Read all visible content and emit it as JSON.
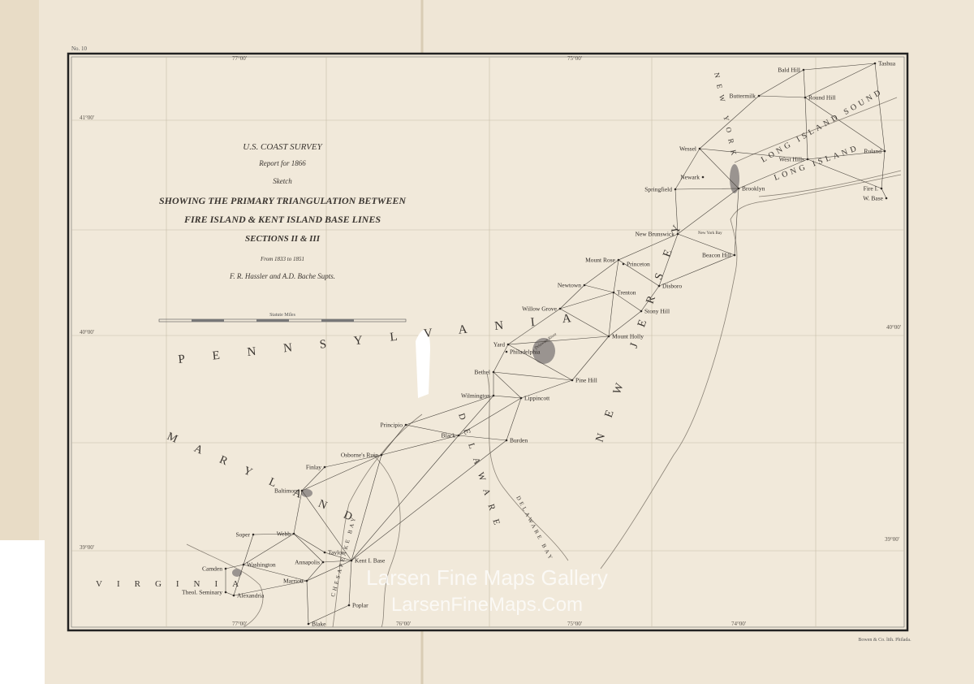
{
  "sheet_number": "No. 10",
  "title_block": {
    "lines": [
      "U.S. COAST SURVEY",
      "Report for 1866",
      "Sketch",
      "SHOWING THE PRIMARY TRIANGULATION BETWEEN",
      "FIRE ISLAND & KENT ISLAND BASE LINES",
      "SECTIONS II & III",
      "From 1833 to 1851",
      "F. R. Hassler and A.D. Bache Supts."
    ],
    "scale_caption": "Statute Miles"
  },
  "regions": [
    "PENNSYLVANIA",
    "NEW JERSEY",
    "MARYLAND",
    "VIRGINIA",
    "DELAWARE",
    "LONG ISLAND SOUND",
    "LONG ISLAND",
    "NEW YORK",
    "DELAWARE BAY",
    "CHESAPEAKE BAY",
    "New York Bay",
    "Delaware River"
  ],
  "stations": [
    "Tashua",
    "Bald Hill",
    "Buttermilk",
    "Round Hill",
    "Wessel",
    "West Hills",
    "Ruland",
    "Newark",
    "Brooklyn",
    "Springfield",
    "Fire I.",
    "W. Base",
    "New Brunswick",
    "Beacon Hill",
    "Mount Rose",
    "Princeton",
    "Newtown",
    "Disboro",
    "Trenton",
    "Stony Hill",
    "Willow Grove",
    "Mount Holly",
    "Yard",
    "Philadelphia",
    "Bethel",
    "Pine Hill",
    "Wilmington",
    "Lippincott",
    "Principio",
    "Black",
    "Burden",
    "Osborne's Ruin",
    "Finlay",
    "Baltimore",
    "Soper",
    "Webb",
    "Taylor",
    "Annapolis",
    "Marriott",
    "Washington",
    "Camden",
    "Theol. Seminary",
    "Alexandria",
    "Kent I. Base",
    "Blake",
    "Poplar"
  ],
  "graticule_labels": [
    "77°00'",
    "75°00'",
    "41°00'",
    "40°00'",
    "40°00'",
    "39°00'",
    "39°00'",
    "77°00'",
    "76°00'",
    "75°00'",
    "74°00'"
  ],
  "imprint": "Bowen & Co. lith. Philada.",
  "watermark": [
    "Larsen Fine Maps Gallery",
    "LarsenFineMaps.Com"
  ]
}
